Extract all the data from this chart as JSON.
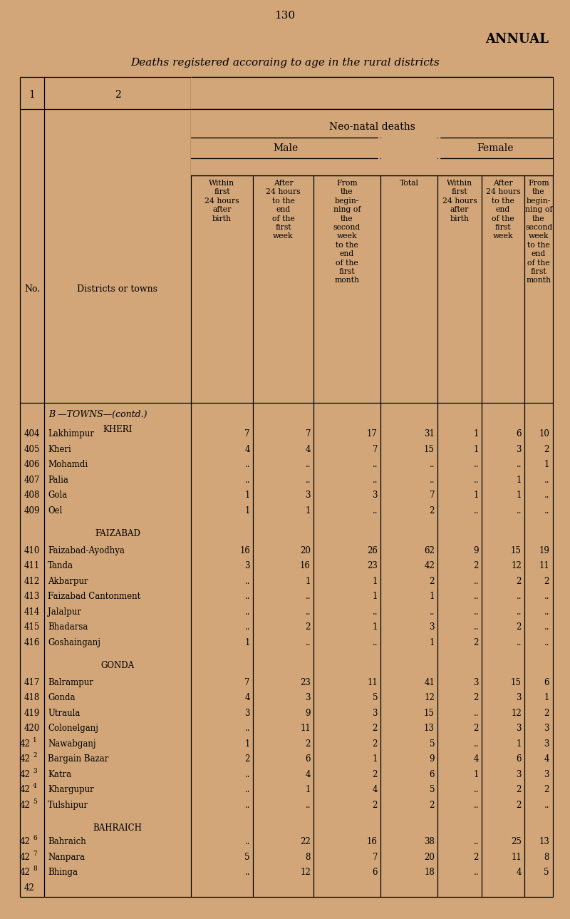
{
  "page_number": "130",
  "annual_label": "ANNUAL",
  "subtitle": "Deaths registered accoraing to age in the rural districts",
  "bg_color": "#d2a679",
  "rows": [
    {
      "no": "404",
      "name": "Lakhimpur",
      "m1": "7",
      "m2": "7",
      "m3": "17",
      "total": "31",
      "f1": "1",
      "f2": "6",
      "f3": "10"
    },
    {
      "no": "405",
      "name": "Kheri",
      "m1": "4",
      "m2": "4",
      "m3": "7",
      "total": "15",
      "f1": "1",
      "f2": "3",
      "f3": "2"
    },
    {
      "no": "406",
      "name": "Mohamdi",
      "m1": "..",
      "m2": "..",
      "m3": "..",
      "total": "..",
      "f1": "..",
      "f2": "..",
      "f3": "1"
    },
    {
      "no": "407",
      "name": "Palia",
      "m1": "..",
      "m2": "..",
      "m3": "..",
      "total": "..",
      "f1": "..",
      "f2": "1",
      "f3": ".."
    },
    {
      "no": "408",
      "name": "Gola",
      "m1": "1",
      "m2": "3",
      "m3": "3",
      "total": "7",
      "f1": "1",
      "f2": "1",
      "f3": ".."
    },
    {
      "no": "409",
      "name": "Oel",
      "m1": "1",
      "m2": "1",
      "m3": "..",
      "total": "2",
      "f1": "..",
      "f2": "..",
      "f3": ".."
    },
    {
      "no": "410",
      "name": "Faizabad-Ayodhya",
      "m1": "16",
      "m2": "20",
      "m3": "26",
      "total": "62",
      "f1": "9",
      "f2": "15",
      "f3": "19"
    },
    {
      "no": "411",
      "name": "Tanda",
      "m1": "3",
      "m2": "16",
      "m3": "23",
      "total": "42",
      "f1": "2",
      "f2": "12",
      "f3": "11"
    },
    {
      "no": "412",
      "name": "Akbarpur",
      "m1": "..",
      "m2": "1",
      "m3": "1",
      "total": "2",
      "f1": "..",
      "f2": "2",
      "f3": "2"
    },
    {
      "no": "413",
      "name": "Faizabad Cantonment",
      "m1": "..",
      "m2": "..",
      "m3": "1",
      "total": "1",
      "f1": "..",
      "f2": "..",
      "f3": ".."
    },
    {
      "no": "414",
      "name": "Jalalpur",
      "m1": "..",
      "m2": "..",
      "m3": "..",
      "total": "..",
      "f1": "..",
      "f2": "..",
      "f3": ".."
    },
    {
      "no": "415",
      "name": "Bhadarsa",
      "m1": "..",
      "m2": "2",
      "m3": "1",
      "total": "3",
      "f1": "..",
      "f2": "2",
      "f3": ".."
    },
    {
      "no": "416",
      "name": "Goshainganj",
      "m1": "1",
      "m2": "..",
      "m3": "..",
      "total": "1",
      "f1": "2",
      "f2": "..",
      "f3": ".."
    },
    {
      "no": "417",
      "name": "Balrampur",
      "m1": "7",
      "m2": "23",
      "m3": "11",
      "total": "41",
      "f1": "3",
      "f2": "15",
      "f3": "6"
    },
    {
      "no": "418",
      "name": "Gonda",
      "m1": "4",
      "m2": "3",
      "m3": "5",
      "total": "12",
      "f1": "2",
      "f2": "3",
      "f3": "1"
    },
    {
      "no": "419",
      "name": "Utraula",
      "m1": "3",
      "m2": "9",
      "m3": "3",
      "total": "15",
      "f1": "..",
      "f2": "12",
      "f3": "2"
    },
    {
      "no": "420",
      "name": "Colonelganj",
      "m1": "..",
      "m2": "11",
      "m3": "2",
      "total": "13",
      "f1": "2",
      "f2": "3",
      "f3": "3"
    },
    {
      "no": "421",
      "name": "Nawabganj",
      "m1": "1",
      "m2": "2",
      "m3": "2",
      "total": "5",
      "f1": "..",
      "f2": "1",
      "f3": "3"
    },
    {
      "no": "422",
      "name": "Bargain Bazar",
      "m1": "2",
      "m2": "6",
      "m3": "1",
      "total": "9",
      "f1": "4",
      "f2": "6",
      "f3": "4"
    },
    {
      "no": "423",
      "name": "Katra",
      "m1": "..",
      "m2": "4",
      "m3": "2",
      "total": "6",
      "f1": "1",
      "f2": "3",
      "f3": "3"
    },
    {
      "no": "424",
      "name": "Khargupur",
      "m1": "..",
      "m2": "1",
      "m3": "4",
      "total": "5",
      "f1": "..",
      "f2": "2",
      "f3": "2"
    },
    {
      "no": "425",
      "name": "Tulshipur",
      "m1": "..",
      "m2": "..",
      "m3": "2",
      "total": "2",
      "f1": "..",
      "f2": "2",
      "f3": ".."
    },
    {
      "no": "426",
      "name": "Bahraich",
      "m1": "..",
      "m2": "22",
      "m3": "16",
      "total": "38",
      "f1": "..",
      "f2": "25",
      "f3": "13"
    },
    {
      "no": "427",
      "name": "Nanpara",
      "m1": "5",
      "m2": "8",
      "m3": "7",
      "total": "20",
      "f1": "2",
      "f2": "11",
      "f3": "8"
    },
    {
      "no": "428",
      "name": "Bhinga",
      "m1": "..",
      "m2": "12",
      "m3": "6",
      "total": "18",
      "f1": "..",
      "f2": "4",
      "f3": "5"
    }
  ],
  "no_superscripts": {
    "421": [
      "42",
      "1"
    ],
    "422": [
      "42",
      "2"
    ],
    "423": [
      "42",
      "3"
    ],
    "424": [
      "42",
      "4"
    ],
    "425": [
      "42",
      "5"
    ],
    "426": [
      "42",
      "6"
    ],
    "427": [
      "42",
      "7"
    ],
    "428": [
      "42",
      "8"
    ]
  }
}
